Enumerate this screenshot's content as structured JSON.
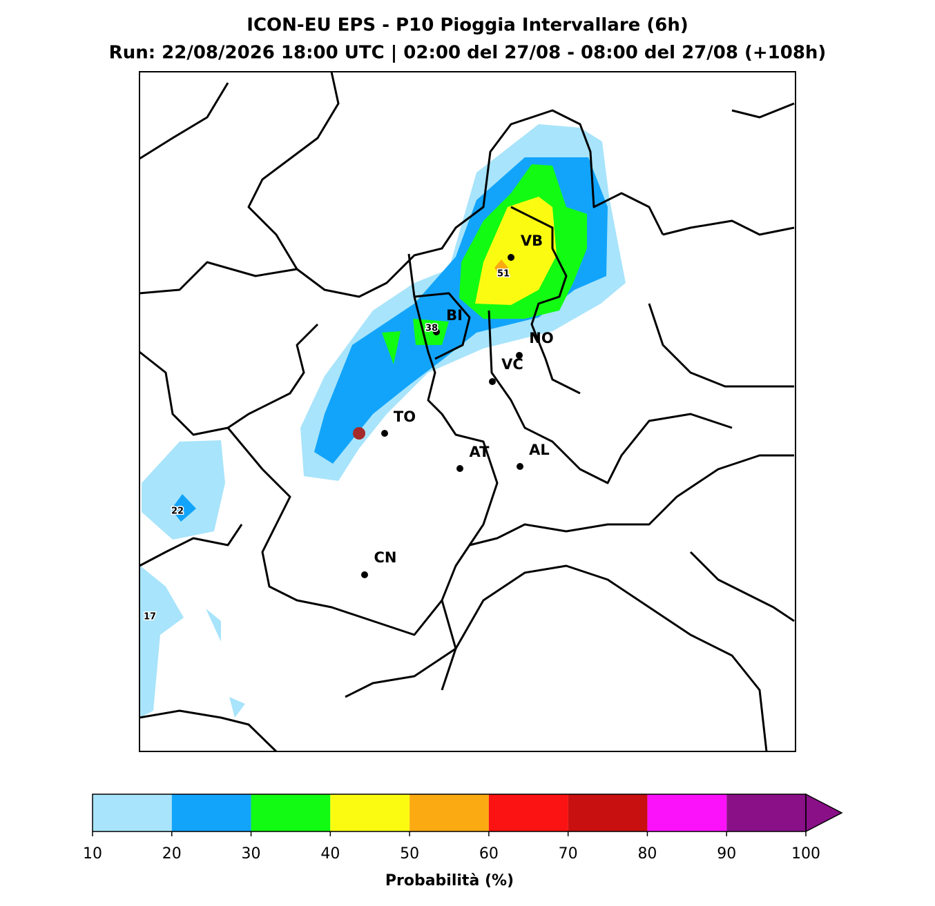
{
  "header": {
    "title": [
      "ICON-EU EPS - P10 Pioggia Intervallare (6h)",
      "Run: 22/08/2026 18:00 UTC | 02:00 del 27/08 - 08:00 del 27/08 (+108h)"
    ]
  },
  "map": {
    "cities": [
      {
        "label": "VB"
      },
      {
        "label": "BI"
      },
      {
        "label": "NO"
      },
      {
        "label": "VC"
      },
      {
        "label": "TO"
      },
      {
        "label": "AT"
      },
      {
        "label": "AL"
      },
      {
        "label": "CN"
      }
    ],
    "contour_labels": [
      "51",
      "38",
      "22",
      "17"
    ]
  },
  "colorbar": {
    "ticks": [
      10,
      20,
      30,
      40,
      50,
      60,
      70,
      80,
      90,
      100
    ],
    "colors": [
      "#a8e4fb",
      "#12a4fb",
      "#12fb12",
      "#fbfb12",
      "#fbaa12",
      "#fb1212",
      "#c81010",
      "#fb12fb",
      "#8a1088"
    ],
    "label": "Probabilità (%)"
  }
}
